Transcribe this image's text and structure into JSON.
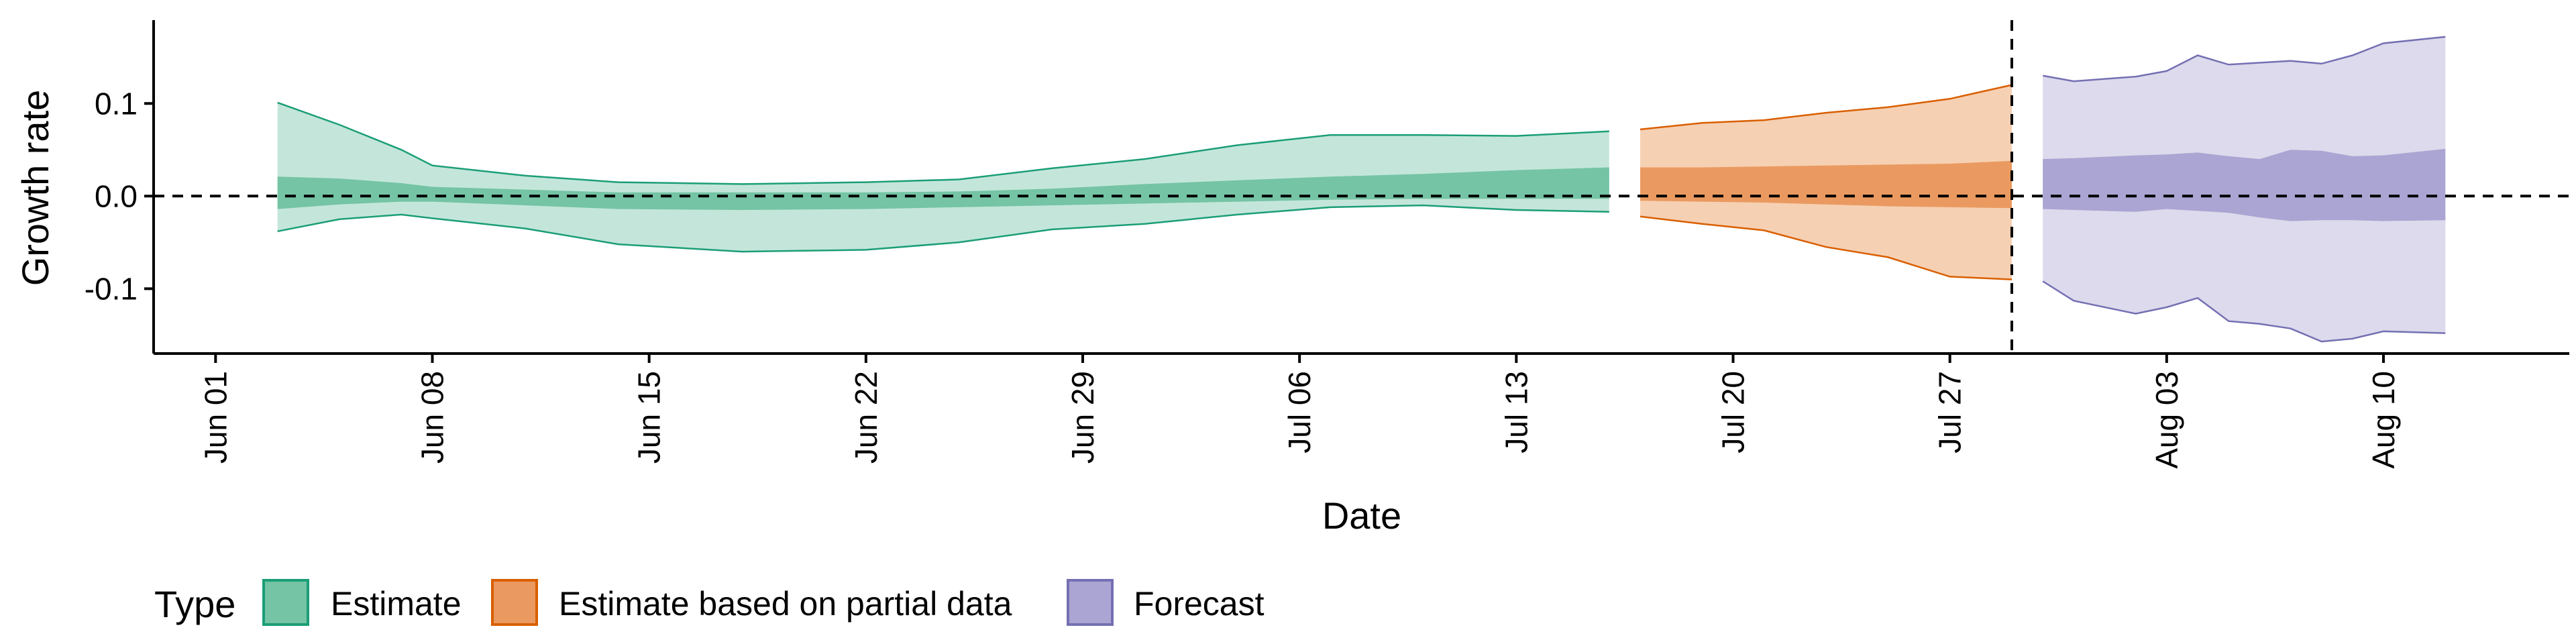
{
  "chart_data": {
    "type": "area",
    "title": "",
    "xlabel": "Date",
    "ylabel": "Growth rate",
    "x_axis": {
      "type": "date",
      "range": [
        "2020-05-30",
        "2020-08-16"
      ],
      "ticks": [
        {
          "date": "2020-06-01",
          "label": "Jun 01"
        },
        {
          "date": "2020-06-08",
          "label": "Jun 08"
        },
        {
          "date": "2020-06-15",
          "label": "Jun 15"
        },
        {
          "date": "2020-06-22",
          "label": "Jun 22"
        },
        {
          "date": "2020-06-29",
          "label": "Jun 29"
        },
        {
          "date": "2020-07-06",
          "label": "Jul 06"
        },
        {
          "date": "2020-07-13",
          "label": "Jul 13"
        },
        {
          "date": "2020-07-20",
          "label": "Jul 20"
        },
        {
          "date": "2020-07-27",
          "label": "Jul 27"
        },
        {
          "date": "2020-08-03",
          "label": "Aug 03"
        },
        {
          "date": "2020-08-10",
          "label": "Aug 10"
        }
      ]
    },
    "y_axis": {
      "range": [
        -0.17,
        0.19
      ],
      "ticks": [
        {
          "value": 0.1,
          "label": "0.1"
        },
        {
          "value": 0.0,
          "label": "0.0"
        },
        {
          "value": -0.1,
          "label": "-0.1"
        }
      ]
    },
    "reference_lines": {
      "horizontal_dashed": 0.0,
      "vertical_dashed": "2020-07-29"
    },
    "grid": false,
    "legend": {
      "title": "Type",
      "placement": "bottom",
      "entries": [
        {
          "label": "Estimate",
          "color": "#74c4a5",
          "border": "#1b9e77"
        },
        {
          "label": "Estimate based on partial data",
          "color": "#ea9a60",
          "border": "#d95f02"
        },
        {
          "label": "Forecast",
          "color": "#aaa5d2",
          "border": "#7570b3"
        }
      ]
    },
    "series": [
      {
        "name": "Estimate",
        "color": "#1b9e77",
        "fill_outer": "#c4e6da",
        "fill_inner": "#74c4a5",
        "points": [
          {
            "date": "2020-06-03",
            "lo90": -0.038,
            "lo50": -0.014,
            "hi50": 0.021,
            "hi90": 0.101
          },
          {
            "date": "2020-06-05",
            "lo90": -0.025,
            "lo50": -0.009,
            "hi50": 0.019,
            "hi90": 0.077
          },
          {
            "date": "2020-06-07",
            "lo90": -0.02,
            "lo50": -0.006,
            "hi50": 0.014,
            "hi90": 0.05
          },
          {
            "date": "2020-06-08",
            "lo90": -0.024,
            "lo50": -0.006,
            "hi50": 0.01,
            "hi90": 0.033
          },
          {
            "date": "2020-06-11",
            "lo90": -0.035,
            "lo50": -0.01,
            "hi50": 0.007,
            "hi90": 0.022
          },
          {
            "date": "2020-06-14",
            "lo90": -0.052,
            "lo50": -0.014,
            "hi50": 0.004,
            "hi90": 0.015
          },
          {
            "date": "2020-06-18",
            "lo90": -0.06,
            "lo50": -0.015,
            "hi50": 0.004,
            "hi90": 0.013
          },
          {
            "date": "2020-06-22",
            "lo90": -0.058,
            "lo50": -0.014,
            "hi50": 0.004,
            "hi90": 0.015
          },
          {
            "date": "2020-06-25",
            "lo90": -0.05,
            "lo50": -0.012,
            "hi50": 0.005,
            "hi90": 0.018
          },
          {
            "date": "2020-06-28",
            "lo90": -0.036,
            "lo50": -0.01,
            "hi50": 0.008,
            "hi90": 0.03
          },
          {
            "date": "2020-07-01",
            "lo90": -0.03,
            "lo50": -0.008,
            "hi50": 0.013,
            "hi90": 0.04
          },
          {
            "date": "2020-07-04",
            "lo90": -0.02,
            "lo50": -0.006,
            "hi50": 0.017,
            "hi90": 0.055
          },
          {
            "date": "2020-07-07",
            "lo90": -0.012,
            "lo50": -0.004,
            "hi50": 0.021,
            "hi90": 0.066
          },
          {
            "date": "2020-07-10",
            "lo90": -0.01,
            "lo50": -0.003,
            "hi50": 0.024,
            "hi90": 0.066
          },
          {
            "date": "2020-07-13",
            "lo90": -0.015,
            "lo50": -0.003,
            "hi50": 0.028,
            "hi90": 0.065
          },
          {
            "date": "2020-07-16",
            "lo90": -0.017,
            "lo50": -0.003,
            "hi50": 0.031,
            "hi90": 0.07
          }
        ]
      },
      {
        "name": "Estimate based on partial data",
        "color": "#d95f02",
        "fill_outer": "#f6d0b3",
        "fill_inner": "#ea9a60",
        "points": [
          {
            "date": "2020-07-17",
            "lo90": -0.022,
            "lo50": -0.005,
            "hi50": 0.031,
            "hi90": 0.072
          },
          {
            "date": "2020-07-19",
            "lo90": -0.03,
            "lo50": -0.006,
            "hi50": 0.031,
            "hi90": 0.079
          },
          {
            "date": "2020-07-21",
            "lo90": -0.037,
            "lo50": -0.007,
            "hi50": 0.032,
            "hi90": 0.082
          },
          {
            "date": "2020-07-23",
            "lo90": -0.055,
            "lo50": -0.009,
            "hi50": 0.033,
            "hi90": 0.09
          },
          {
            "date": "2020-07-25",
            "lo90": -0.066,
            "lo50": -0.011,
            "hi50": 0.034,
            "hi90": 0.096
          },
          {
            "date": "2020-07-27",
            "lo90": -0.087,
            "lo50": -0.012,
            "hi50": 0.035,
            "hi90": 0.105
          },
          {
            "date": "2020-07-29",
            "lo90": -0.09,
            "lo50": -0.013,
            "hi50": 0.038,
            "hi90": 0.12
          }
        ]
      },
      {
        "name": "Forecast",
        "color": "#7570b3",
        "fill_outer": "#dcdaec",
        "fill_inner": "#aaa5d2",
        "points": [
          {
            "date": "2020-07-30",
            "lo90": -0.092,
            "lo50": -0.014,
            "hi50": 0.04,
            "hi90": 0.13
          },
          {
            "date": "2020-07-31",
            "lo90": -0.113,
            "lo50": -0.015,
            "hi50": 0.041,
            "hi90": 0.124
          },
          {
            "date": "2020-08-02",
            "lo90": -0.127,
            "lo50": -0.017,
            "hi50": 0.044,
            "hi90": 0.129
          },
          {
            "date": "2020-08-03",
            "lo90": -0.12,
            "lo50": -0.014,
            "hi50": 0.045,
            "hi90": 0.135
          },
          {
            "date": "2020-08-04",
            "lo90": -0.11,
            "lo50": -0.016,
            "hi50": 0.047,
            "hi90": 0.152
          },
          {
            "date": "2020-08-05",
            "lo90": -0.135,
            "lo50": -0.018,
            "hi50": 0.043,
            "hi90": 0.142
          },
          {
            "date": "2020-08-06",
            "lo90": -0.138,
            "lo50": -0.023,
            "hi50": 0.04,
            "hi90": 0.144
          },
          {
            "date": "2020-08-07",
            "lo90": -0.143,
            "lo50": -0.027,
            "hi50": 0.05,
            "hi90": 0.146
          },
          {
            "date": "2020-08-08",
            "lo90": -0.157,
            "lo50": -0.026,
            "hi50": 0.049,
            "hi90": 0.143
          },
          {
            "date": "2020-08-09",
            "lo90": -0.154,
            "lo50": -0.026,
            "hi50": 0.043,
            "hi90": 0.152
          },
          {
            "date": "2020-08-10",
            "lo90": -0.146,
            "lo50": -0.027,
            "hi50": 0.044,
            "hi90": 0.165
          },
          {
            "date": "2020-08-12",
            "lo90": -0.148,
            "lo50": -0.026,
            "hi50": 0.051,
            "hi90": 0.172
          }
        ]
      }
    ]
  }
}
